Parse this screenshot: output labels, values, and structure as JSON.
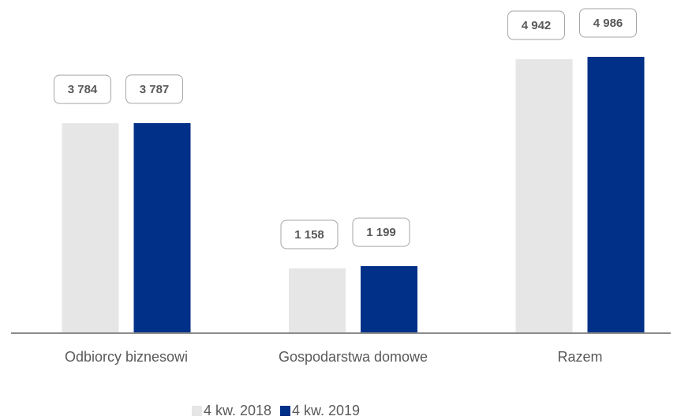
{
  "chart_data": {
    "type": "bar",
    "categories": [
      "Odbiorcy biznesowi",
      "Gospodarstwa domowe",
      "Razem"
    ],
    "series": [
      {
        "name": "4 kw. 2018",
        "color": "#e6e6e6",
        "values": [
          3784,
          1158,
          4942
        ],
        "value_labels": [
          "3 784",
          "1 158",
          "4 942"
        ]
      },
      {
        "name": "4 kw. 2019",
        "color": "#003087",
        "values": [
          3787,
          1199,
          4986
        ],
        "value_labels": [
          "3 787",
          "1 199",
          "4 986"
        ]
      }
    ],
    "ylim": [
      0,
      5000
    ],
    "legend": "bottom"
  }
}
